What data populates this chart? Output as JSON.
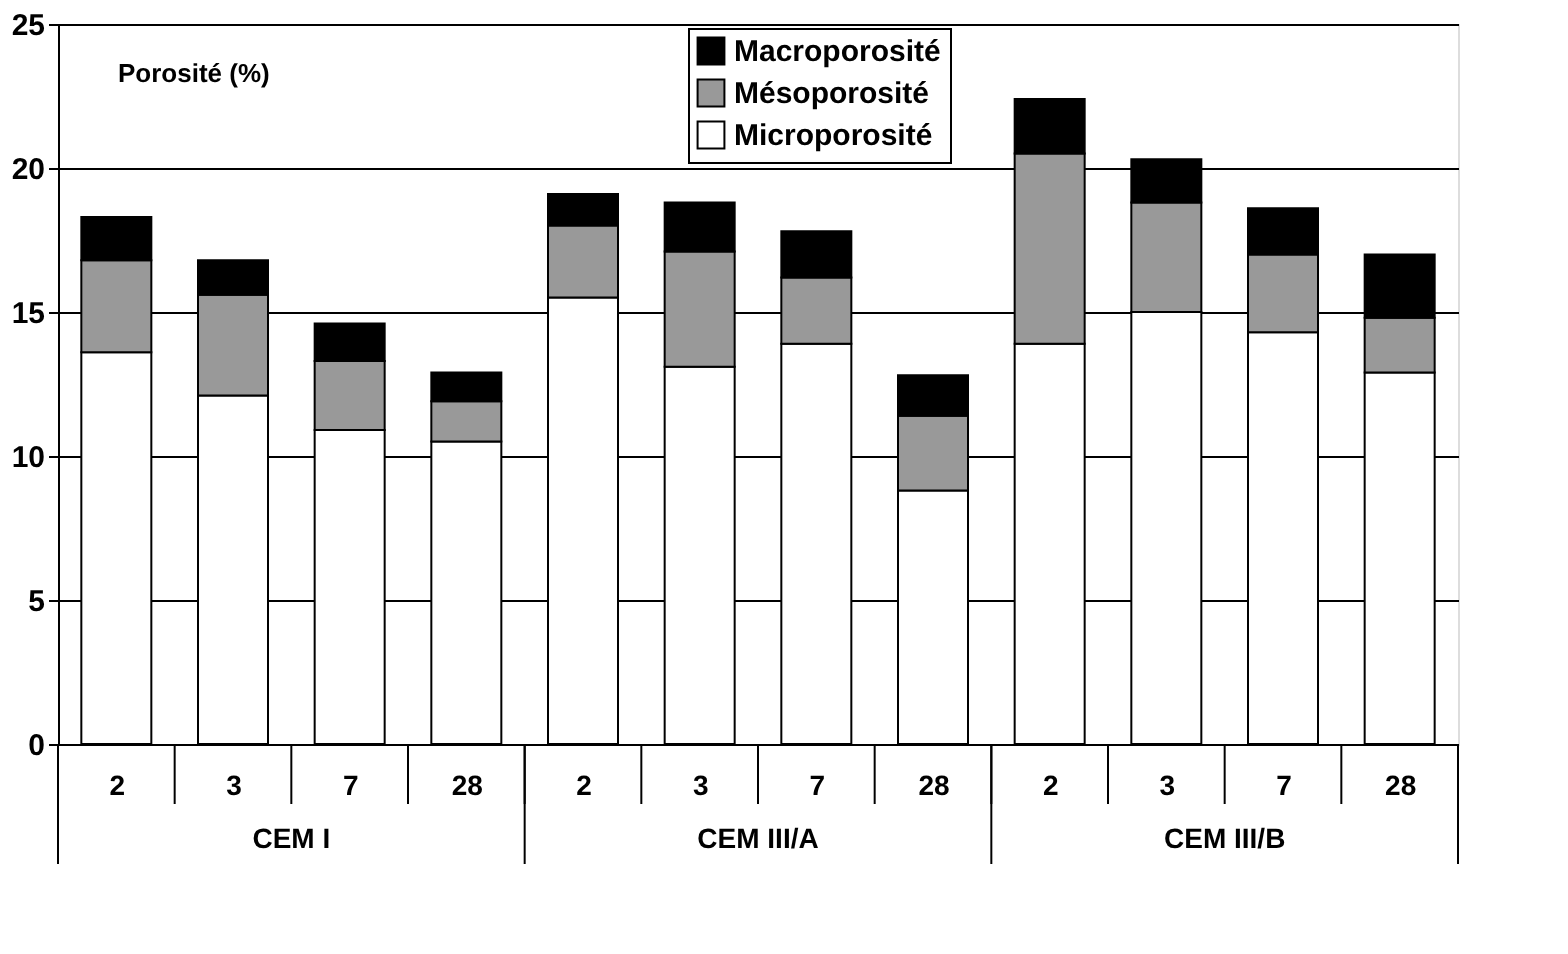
{
  "chart_data": {
    "type": "bar",
    "stacked": true,
    "ylabel": "Porosité (%)",
    "categories": [
      "2",
      "3",
      "7",
      "28",
      "2",
      "3",
      "7",
      "28",
      "2",
      "3",
      "7",
      "28"
    ],
    "annotations": [
      "CEM I",
      "CEM III/A",
      "CEM III/B"
    ],
    "series": [
      {
        "name": "Microporosité",
        "color": "#ffffff",
        "values": [
          13.6,
          12.1,
          10.9,
          10.5,
          15.5,
          13.1,
          13.9,
          8.8,
          13.9,
          15.0,
          14.3,
          12.9
        ]
      },
      {
        "name": "Mésoporosité",
        "color": "#999999",
        "values": [
          3.2,
          3.5,
          2.4,
          1.4,
          2.5,
          4.0,
          2.3,
          2.6,
          6.6,
          3.8,
          2.7,
          1.9
        ]
      },
      {
        "name": "Macroporosité",
        "color": "#000000",
        "values": [
          1.5,
          1.2,
          1.3,
          1.0,
          1.1,
          1.7,
          1.6,
          1.4,
          1.9,
          1.5,
          1.6,
          2.2
        ]
      }
    ],
    "ylim": [
      0,
      25
    ],
    "yticks": [
      0,
      5,
      10,
      15,
      20,
      25
    ],
    "grid": "y",
    "legend": "top"
  }
}
